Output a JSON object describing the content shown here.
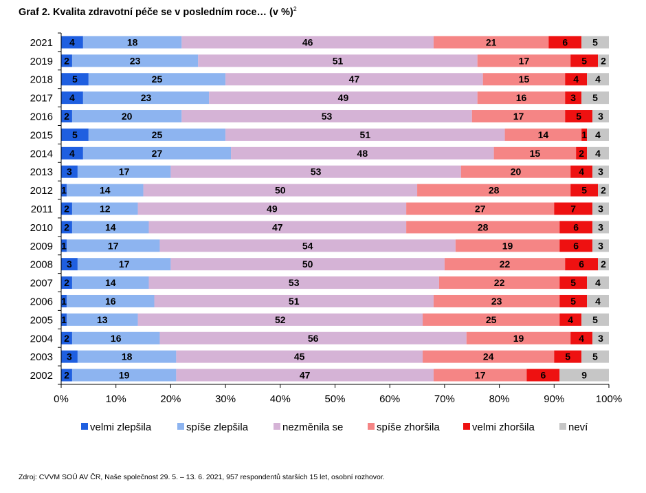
{
  "title": "Graf 2. Kvalita zdravotní péče se v posledním roce… (v %)",
  "title_sup": "2",
  "source": "Zdroj: CVVM SOÚ AV ČR, Naše společnost 29. 5. – 13. 6. 2021, 957 respondentů starších 15 let, osobní rozhovor.",
  "chart_data": {
    "type": "bar",
    "orientation": "horizontal",
    "stacked": "percent",
    "categories": [
      "2021",
      "2019",
      "2018",
      "2017",
      "2016",
      "2015",
      "2014",
      "2013",
      "2012",
      "2011",
      "2010",
      "2009",
      "2008",
      "2007",
      "2006",
      "2005",
      "2004",
      "2003",
      "2002"
    ],
    "series": [
      {
        "name": "velmi zlepšila",
        "color": "#1f5fe0",
        "values": [
          4,
          2,
          5,
          4,
          2,
          5,
          4,
          3,
          1,
          2,
          2,
          1,
          3,
          2,
          1,
          1,
          2,
          3,
          2
        ]
      },
      {
        "name": "spíše zlepšila",
        "color": "#8db4f0",
        "values": [
          18,
          23,
          25,
          23,
          20,
          25,
          27,
          17,
          14,
          12,
          14,
          17,
          17,
          14,
          16,
          13,
          16,
          18,
          19
        ]
      },
      {
        "name": "nezměnila se",
        "color": "#d5b3d6",
        "values": [
          46,
          51,
          47,
          49,
          53,
          51,
          48,
          53,
          50,
          49,
          47,
          54,
          50,
          53,
          51,
          52,
          56,
          45,
          47
        ]
      },
      {
        "name": "spíše zhoršila",
        "color": "#f58585",
        "values": [
          21,
          17,
          15,
          16,
          17,
          14,
          15,
          20,
          28,
          27,
          28,
          19,
          22,
          22,
          23,
          25,
          19,
          24,
          17
        ]
      },
      {
        "name": "velmi zhoršila",
        "color": "#ee1111",
        "values": [
          6,
          5,
          4,
          3,
          5,
          1,
          2,
          4,
          5,
          7,
          6,
          6,
          6,
          5,
          5,
          4,
          4,
          5,
          6
        ]
      },
      {
        "name": "neví",
        "color": "#c6c6c6",
        "values": [
          5,
          2,
          4,
          5,
          3,
          4,
          4,
          3,
          2,
          3,
          3,
          3,
          2,
          4,
          4,
          5,
          3,
          5,
          9
        ]
      }
    ],
    "x_ticks": [
      "0%",
      "10%",
      "20%",
      "30%",
      "40%",
      "50%",
      "60%",
      "70%",
      "80%",
      "90%",
      "100%"
    ],
    "xlim": [
      0,
      100
    ],
    "legend": "bottom",
    "grid": false
  }
}
